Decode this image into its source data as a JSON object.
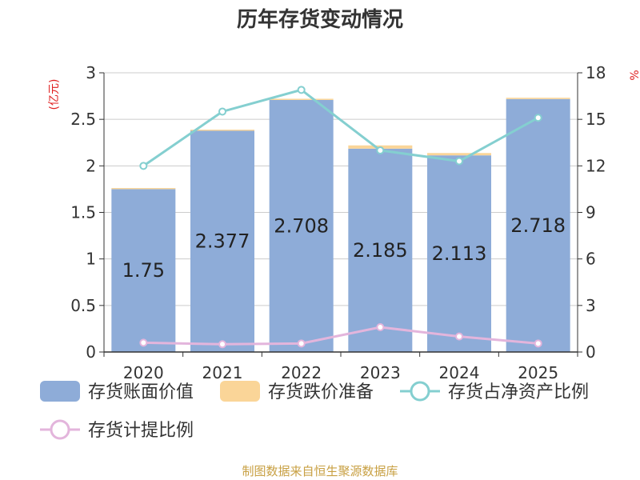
{
  "title": "历年存货变动情况",
  "source": "制图数据来自恒生聚源数据库",
  "colors": {
    "book_value": "#8eacd8",
    "impairment": "#fad598",
    "ratio_net_assets": "#84cfd0",
    "provision_ratio": "#e3b5dc",
    "axis_unit": "#e02020",
    "source": "#c8a043"
  },
  "chart_data": {
    "type": "bar",
    "stacked": true,
    "categories": [
      "2020",
      "2021",
      "2022",
      "2023",
      "2024",
      "2025"
    ],
    "ylabel": "(亿元)",
    "ylim": [
      0,
      3
    ],
    "yticks": [
      0,
      0.5,
      1,
      1.5,
      2,
      2.5,
      3
    ],
    "ytick_labels": [
      "0",
      "0.5",
      "1",
      "1.5",
      "2",
      "2.5",
      "3"
    ],
    "y2lim": [
      0,
      18
    ],
    "y2ticks": [
      0,
      3,
      6,
      9,
      12,
      15,
      18
    ],
    "y2label": "%",
    "grid": true,
    "legend_position": "bottom",
    "series": [
      {
        "name": "存货账面价值",
        "type": "bar",
        "axis": "left",
        "values": [
          1.75,
          2.377,
          2.708,
          2.185,
          2.113,
          2.718
        ],
        "data_labels": [
          "1.75",
          "2.377",
          "2.708",
          "2.185",
          "2.113",
          "2.718"
        ]
      },
      {
        "name": "存货跌价准备",
        "type": "bar",
        "axis": "left",
        "values": [
          0.012,
          0.012,
          0.013,
          0.035,
          0.025,
          0.014
        ]
      },
      {
        "name": "存货占净资产比例",
        "type": "line",
        "axis": "right",
        "values": [
          12.0,
          15.5,
          16.9,
          13.0,
          12.3,
          15.1
        ]
      },
      {
        "name": "存货计提比例",
        "type": "line",
        "axis": "right",
        "values": [
          0.6,
          0.5,
          0.55,
          1.6,
          1.0,
          0.55
        ]
      }
    ]
  }
}
